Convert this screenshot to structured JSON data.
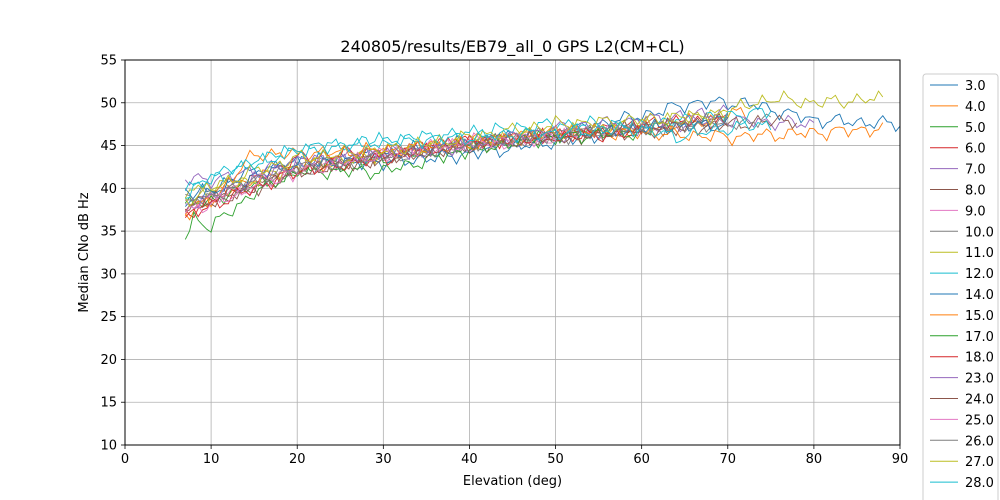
{
  "chart_data": {
    "type": "line",
    "title": "240805/results/EB79_all_0 GPS L2(CM+CL)",
    "xlabel": "Elevation (deg)",
    "ylabel": "Median CNo dB Hz",
    "xlim": [
      0,
      90
    ],
    "ylim": [
      10,
      55
    ],
    "xticks": [
      "0",
      "10",
      "20",
      "30",
      "40",
      "50",
      "60",
      "70",
      "80",
      "90"
    ],
    "yticks": [
      "10",
      "15",
      "20",
      "25",
      "30",
      "35",
      "40",
      "45",
      "50",
      "55"
    ],
    "grid": true,
    "legend_position": "right, outside plot area",
    "series": [
      {
        "name": "3.0",
        "color": "#1f77b4",
        "x": [
          7,
          10,
          15,
          20,
          30,
          40,
          50,
          60,
          66,
          72,
          80,
          90
        ],
        "y": [
          38.5,
          40,
          42,
          43,
          44,
          45.5,
          46.5,
          48.5,
          50,
          50,
          48,
          47.5
        ]
      },
      {
        "name": "4.0",
        "color": "#ff7f0e",
        "x": [
          7,
          10,
          15,
          20,
          30,
          40,
          50,
          60,
          68,
          72
        ],
        "y": [
          37.5,
          39,
          41,
          42.5,
          44,
          45.5,
          46.5,
          47,
          48,
          49
        ]
      },
      {
        "name": "5.0",
        "color": "#2ca02c",
        "x": [
          7,
          10,
          15,
          20,
          30,
          40,
          50,
          60,
          65
        ],
        "y": [
          38,
          38.5,
          40.5,
          42,
          43.5,
          45,
          46,
          47,
          47.5
        ]
      },
      {
        "name": "6.0",
        "color": "#d62728",
        "x": [
          7,
          10,
          15,
          20,
          30,
          40,
          50,
          60,
          70
        ],
        "y": [
          37,
          38.5,
          41,
          43.5,
          44.5,
          45.5,
          46,
          47.5,
          48
        ]
      },
      {
        "name": "7.0",
        "color": "#9467bd",
        "x": [
          7,
          10,
          15,
          20,
          30,
          40,
          50,
          60,
          70,
          80
        ],
        "y": [
          41,
          41,
          42,
          43,
          44,
          45,
          46,
          47,
          48,
          47.5
        ]
      },
      {
        "name": "8.0",
        "color": "#8c564b",
        "x": [
          7,
          10,
          15,
          20,
          30,
          40,
          50,
          60,
          70,
          78
        ],
        "y": [
          37.5,
          38.5,
          40,
          42,
          43.5,
          45,
          46,
          46.5,
          47.5,
          48
        ]
      },
      {
        "name": "9.0",
        "color": "#e377c2",
        "x": [
          7,
          10,
          15,
          20,
          30,
          40,
          50,
          60
        ],
        "y": [
          38,
          39,
          40,
          42,
          44,
          45,
          46,
          47
        ]
      },
      {
        "name": "10.0",
        "color": "#7f7f7f",
        "x": [
          7,
          10,
          15,
          20,
          30,
          40,
          50,
          60,
          70,
          75
        ],
        "y": [
          39,
          39.5,
          40.5,
          42,
          43.5,
          45,
          46,
          47,
          47.5,
          48
        ]
      },
      {
        "name": "11.0",
        "color": "#bcbd22",
        "x": [
          7,
          10,
          15,
          20,
          30,
          40,
          50,
          60,
          70,
          75,
          80,
          88
        ],
        "y": [
          39.5,
          40,
          41,
          42.5,
          44,
          45.5,
          46.5,
          47.5,
          49,
          50.5,
          50,
          50.5
        ]
      },
      {
        "name": "12.0",
        "color": "#17becf",
        "x": [
          7,
          10,
          15,
          20,
          30,
          40,
          50,
          60,
          70,
          75
        ],
        "y": [
          40,
          41,
          43,
          44.5,
          45.5,
          46.5,
          47.5,
          47.5,
          48.5,
          49
        ]
      },
      {
        "name": "14.0",
        "color": "#1f77b4",
        "x": [
          7,
          10,
          15,
          20,
          30,
          40,
          50,
          60,
          70
        ],
        "y": [
          39,
          39.5,
          41.5,
          43,
          43,
          44,
          45.5,
          47,
          47.5
        ]
      },
      {
        "name": "15.0",
        "color": "#ff7f0e",
        "x": [
          7,
          10,
          15,
          20,
          30,
          40,
          50,
          60,
          70,
          80,
          88
        ],
        "y": [
          37,
          38.5,
          44,
          44,
          44.5,
          45,
          46.5,
          46.5,
          46,
          46.5,
          47
        ]
      },
      {
        "name": "17.0",
        "color": "#2ca02c",
        "x": [
          7,
          8,
          10,
          15,
          20,
          30,
          40,
          50,
          60
        ],
        "y": [
          34.2,
          36.5,
          35.5,
          39.5,
          42,
          42,
          44.5,
          46,
          46.5
        ]
      },
      {
        "name": "18.0",
        "color": "#d62728",
        "x": [
          7,
          10,
          15,
          20,
          30,
          40,
          50,
          60
        ],
        "y": [
          36.5,
          38,
          40,
          42,
          43.5,
          45.5,
          46,
          46.5
        ]
      },
      {
        "name": "23.0",
        "color": "#9467bd",
        "x": [
          7,
          10,
          15,
          20,
          30,
          40,
          50,
          60,
          70
        ],
        "y": [
          38,
          39,
          41,
          43,
          44,
          45,
          47,
          48,
          49
        ]
      },
      {
        "name": "24.0",
        "color": "#8c564b",
        "x": [
          7,
          10,
          15,
          20,
          30,
          40,
          50,
          60,
          70
        ],
        "y": [
          38,
          38.5,
          40,
          42,
          43.5,
          45,
          46,
          47,
          48
        ]
      },
      {
        "name": "25.0",
        "color": "#e377c2",
        "x": [
          7,
          10,
          15,
          20,
          30,
          40,
          50
        ],
        "y": [
          37.5,
          38,
          40.5,
          42,
          44,
          45.5,
          46
        ]
      },
      {
        "name": "26.0",
        "color": "#7f7f7f",
        "x": [
          7,
          10,
          15,
          20,
          30,
          40,
          50,
          60,
          70
        ],
        "y": [
          38.5,
          39,
          41,
          42.5,
          44,
          45,
          46.5,
          47,
          48
        ]
      },
      {
        "name": "27.0",
        "color": "#bcbd22",
        "x": [
          7,
          10,
          15,
          20,
          30,
          40,
          50,
          60,
          70
        ],
        "y": [
          38.5,
          40,
          42,
          43.5,
          44.5,
          46,
          47.5,
          48,
          48.5
        ]
      },
      {
        "name": "28.0",
        "color": "#17becf",
        "x": [
          7,
          10,
          15,
          20,
          30,
          40,
          50,
          60,
          64,
          70,
          75
        ],
        "y": [
          39,
          41.5,
          43,
          44.5,
          45.5,
          46,
          46.5,
          47,
          46,
          47,
          47.5
        ]
      }
    ]
  }
}
